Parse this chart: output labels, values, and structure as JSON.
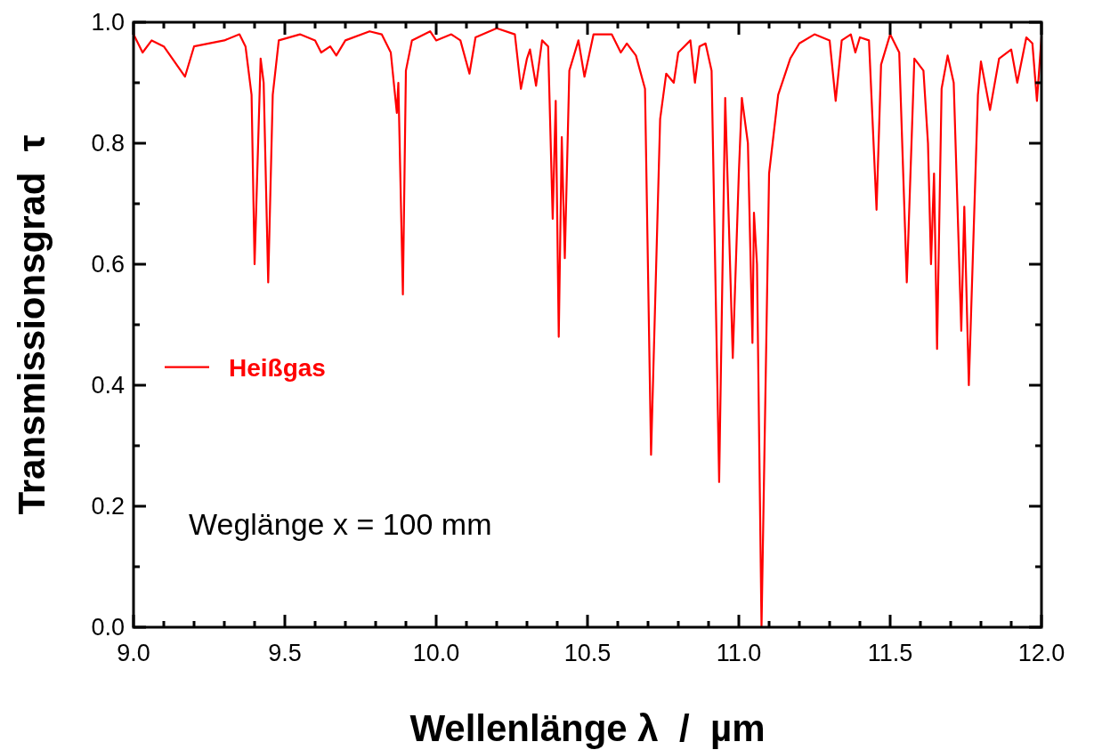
{
  "chart_data": {
    "type": "line",
    "xlabel": "Wellenlänge λ  /  µm",
    "ylabel": "Transmissionsgrad  τ",
    "annotations": [
      "Weglänge x = 100 mm"
    ],
    "xlim": [
      9.0,
      12.0
    ],
    "ylim": [
      0.0,
      1.0
    ],
    "xticks": [
      {
        "value": 9.0,
        "label": "9.0"
      },
      {
        "value": 9.1,
        "label": null
      },
      {
        "value": 9.2,
        "label": null
      },
      {
        "value": 9.3,
        "label": null
      },
      {
        "value": 9.4,
        "label": null
      },
      {
        "value": 9.5,
        "label": "9.5"
      },
      {
        "value": 9.6,
        "label": null
      },
      {
        "value": 9.7,
        "label": null
      },
      {
        "value": 9.8,
        "label": null
      },
      {
        "value": 9.9,
        "label": null
      },
      {
        "value": 10.0,
        "label": "10.0"
      },
      {
        "value": 10.1,
        "label": null
      },
      {
        "value": 10.2,
        "label": null
      },
      {
        "value": 10.3,
        "label": null
      },
      {
        "value": 10.4,
        "label": null
      },
      {
        "value": 10.5,
        "label": "10.5"
      },
      {
        "value": 10.6,
        "label": null
      },
      {
        "value": 10.7,
        "label": null
      },
      {
        "value": 10.8,
        "label": null
      },
      {
        "value": 10.9,
        "label": null
      },
      {
        "value": 11.0,
        "label": "11.0"
      },
      {
        "value": 11.1,
        "label": null
      },
      {
        "value": 11.2,
        "label": null
      },
      {
        "value": 11.3,
        "label": null
      },
      {
        "value": 11.4,
        "label": null
      },
      {
        "value": 11.5,
        "label": "11.5"
      },
      {
        "value": 11.6,
        "label": null
      },
      {
        "value": 11.7,
        "label": null
      },
      {
        "value": 11.8,
        "label": null
      },
      {
        "value": 11.9,
        "label": null
      },
      {
        "value": 12.0,
        "label": "12.0"
      }
    ],
    "yticks": [
      {
        "value": 0.0,
        "label": "0.0"
      },
      {
        "value": 0.1,
        "label": null
      },
      {
        "value": 0.2,
        "label": "0.2"
      },
      {
        "value": 0.3,
        "label": null
      },
      {
        "value": 0.4,
        "label": "0.4"
      },
      {
        "value": 0.5,
        "label": null
      },
      {
        "value": 0.6,
        "label": "0.6"
      },
      {
        "value": 0.7,
        "label": null
      },
      {
        "value": 0.8,
        "label": "0.8"
      },
      {
        "value": 0.9,
        "label": null
      },
      {
        "value": 1.0,
        "label": "1.0"
      }
    ],
    "grid": false,
    "legend": "left",
    "marker": "none",
    "line_style": "solid",
    "series": [
      {
        "name": "Heißgas",
        "color": "#ff0000",
        "x": [
          9.0,
          9.03,
          9.06,
          9.1,
          9.17,
          9.2,
          9.3,
          9.35,
          9.37,
          9.39,
          9.4,
          9.42,
          9.43,
          9.445,
          9.46,
          9.48,
          9.55,
          9.6,
          9.62,
          9.65,
          9.67,
          9.7,
          9.78,
          9.82,
          9.85,
          9.87,
          9.875,
          9.89,
          9.9,
          9.92,
          9.98,
          10.0,
          10.05,
          10.08,
          10.11,
          10.13,
          10.2,
          10.26,
          10.28,
          10.3,
          10.31,
          10.33,
          10.35,
          10.37,
          10.385,
          10.395,
          10.405,
          10.415,
          10.425,
          10.44,
          10.47,
          10.49,
          10.52,
          10.58,
          10.61,
          10.63,
          10.66,
          10.69,
          10.71,
          10.74,
          10.76,
          10.785,
          10.8,
          10.84,
          10.855,
          10.87,
          10.89,
          10.91,
          10.935,
          10.955,
          10.98,
          11.0,
          11.01,
          11.03,
          11.045,
          11.05,
          11.06,
          11.075,
          11.1,
          11.13,
          11.17,
          11.2,
          11.25,
          11.3,
          11.32,
          11.34,
          11.37,
          11.385,
          11.4,
          11.43,
          11.455,
          11.47,
          11.5,
          11.53,
          11.555,
          11.58,
          11.61,
          11.625,
          11.635,
          11.645,
          11.655,
          11.67,
          11.69,
          11.71,
          11.735,
          11.745,
          11.76,
          11.79,
          11.8,
          11.83,
          11.86,
          11.9,
          11.92,
          11.95,
          11.97,
          11.985,
          12.0
        ],
        "values": [
          0.98,
          0.95,
          0.97,
          0.96,
          0.91,
          0.96,
          0.97,
          0.98,
          0.96,
          0.88,
          0.6,
          0.94,
          0.9,
          0.57,
          0.88,
          0.97,
          0.98,
          0.97,
          0.95,
          0.96,
          0.945,
          0.97,
          0.985,
          0.98,
          0.95,
          0.85,
          0.9,
          0.55,
          0.92,
          0.97,
          0.985,
          0.97,
          0.98,
          0.97,
          0.915,
          0.975,
          0.99,
          0.98,
          0.89,
          0.94,
          0.955,
          0.895,
          0.97,
          0.96,
          0.675,
          0.87,
          0.48,
          0.81,
          0.61,
          0.92,
          0.97,
          0.91,
          0.98,
          0.98,
          0.95,
          0.965,
          0.945,
          0.89,
          0.285,
          0.84,
          0.915,
          0.9,
          0.95,
          0.97,
          0.9,
          0.96,
          0.965,
          0.92,
          0.24,
          0.875,
          0.445,
          0.75,
          0.875,
          0.8,
          0.47,
          0.685,
          0.6,
          0.0,
          0.75,
          0.88,
          0.94,
          0.965,
          0.98,
          0.97,
          0.87,
          0.97,
          0.98,
          0.95,
          0.975,
          0.97,
          0.69,
          0.93,
          0.98,
          0.95,
          0.57,
          0.94,
          0.92,
          0.8,
          0.6,
          0.75,
          0.46,
          0.89,
          0.945,
          0.9,
          0.49,
          0.695,
          0.4,
          0.88,
          0.935,
          0.855,
          0.94,
          0.955,
          0.9,
          0.975,
          0.965,
          0.87,
          0.975
        ]
      }
    ]
  }
}
